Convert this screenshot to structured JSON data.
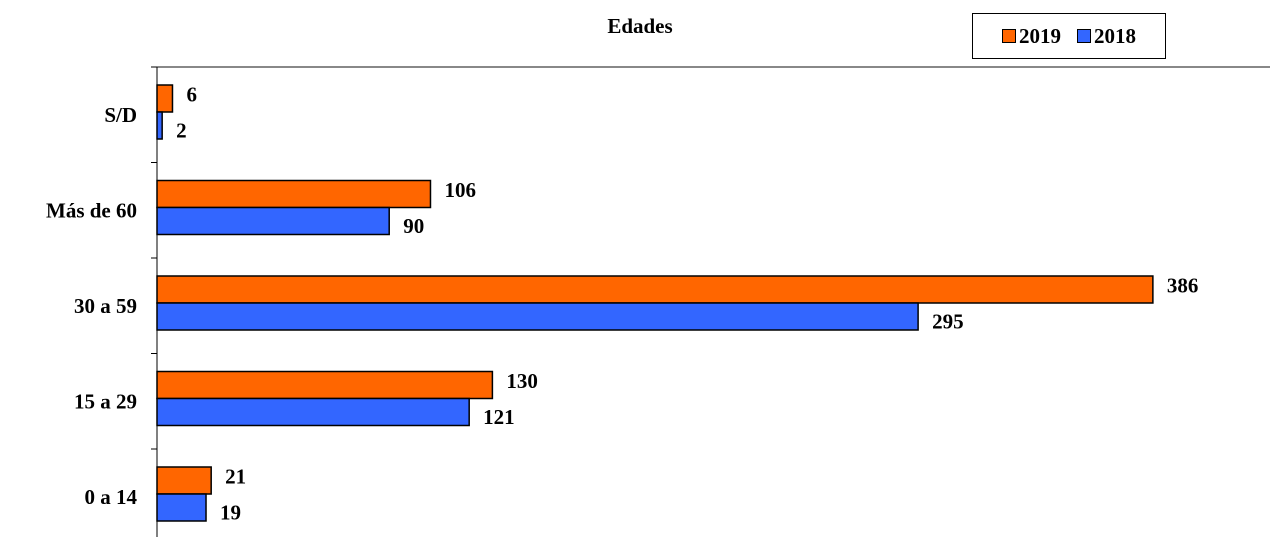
{
  "chart_data": {
    "type": "bar",
    "orientation": "horizontal",
    "title": "Edades",
    "categories": [
      "0 a 14",
      "15 a 29",
      "30 a 59",
      "Más de 60",
      "S/D"
    ],
    "series": [
      {
        "name": "2019",
        "color": "#ff6600",
        "values": [
          21,
          130,
          386,
          106,
          6
        ]
      },
      {
        "name": "2018",
        "color": "#3366ff",
        "values": [
          19,
          121,
          295,
          90,
          2
        ]
      }
    ],
    "xlim": [
      0,
      386
    ],
    "legend_position": "top-right",
    "grid": false
  }
}
